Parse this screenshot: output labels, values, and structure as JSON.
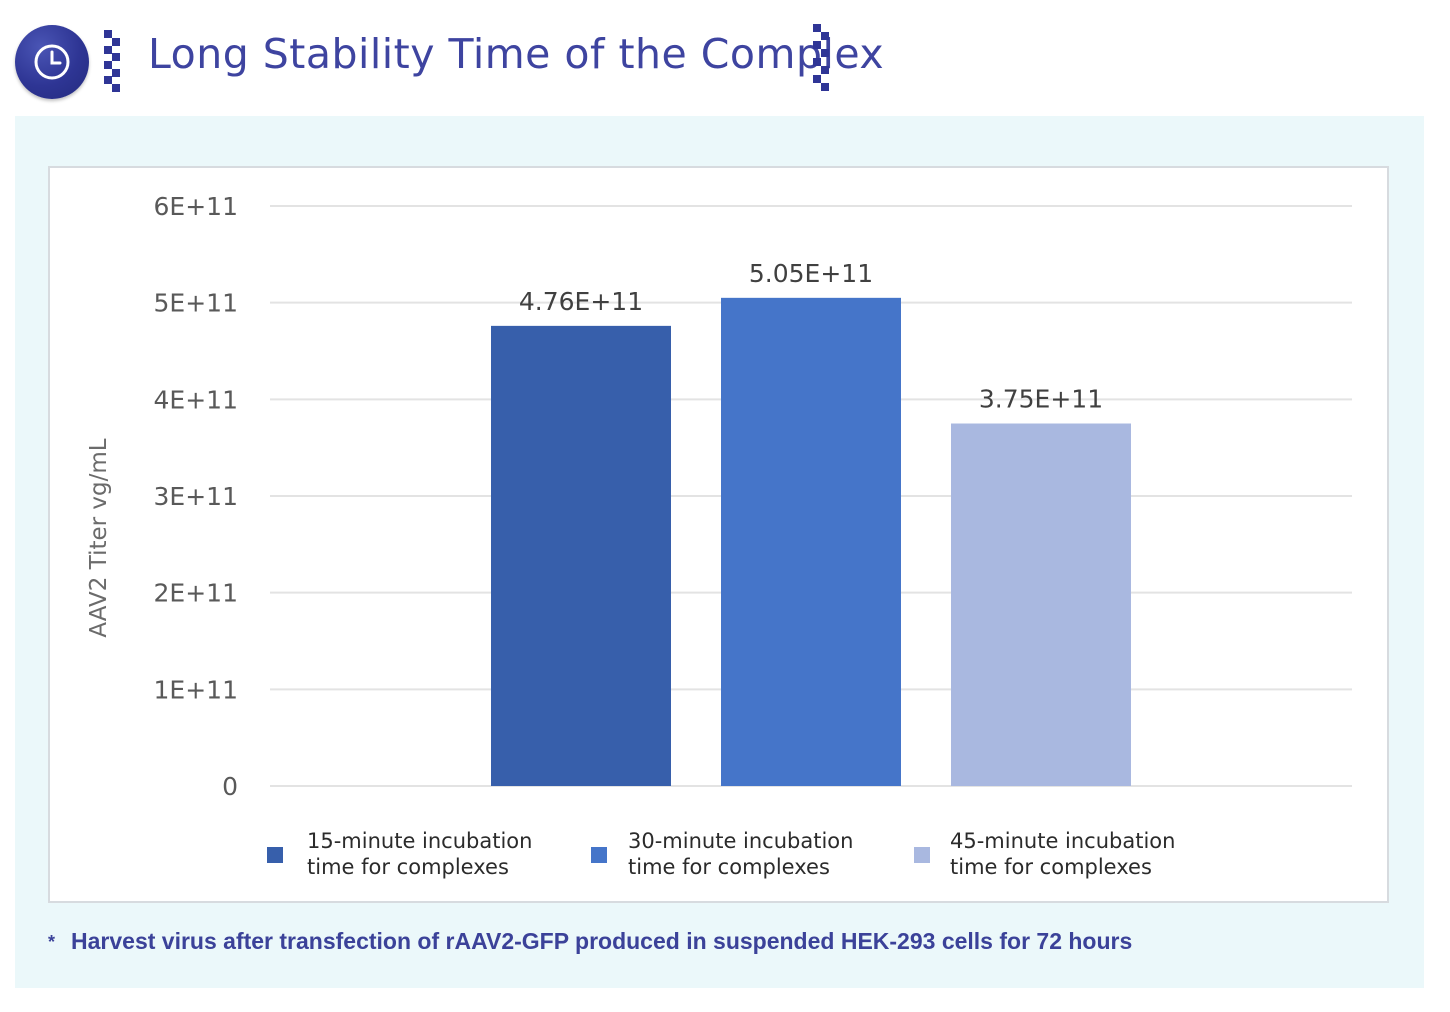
{
  "header": {
    "title": "Long Stability Time of the Complex",
    "icon": "clock-icon",
    "accent_color": "#3e44a0"
  },
  "chart_data": {
    "type": "bar",
    "title": "",
    "xlabel": "",
    "ylabel": "AAV2 Titer vg/mL",
    "ylim": [
      0,
      600000000000
    ],
    "yticks": [
      0,
      100000000000,
      200000000000,
      300000000000,
      400000000000,
      500000000000,
      600000000000
    ],
    "ytick_labels": [
      "0",
      "1E+11",
      "2E+11",
      "3E+11",
      "4E+11",
      "5E+11",
      "6E+11"
    ],
    "grid": true,
    "legend_position": "bottom",
    "series": [
      {
        "name": "15-minute incubation time for complexes",
        "legend_lines": [
          "15-minute incubation",
          "time for complexes"
        ],
        "values": [
          476000000000
        ],
        "data_label": "4.76E+11",
        "color": "#375fab"
      },
      {
        "name": "30-minute incubation time for complexes",
        "legend_lines": [
          "30-minute incubation",
          "time for complexes"
        ],
        "values": [
          505000000000
        ],
        "data_label": "5.05E+11",
        "color": "#4575c9"
      },
      {
        "name": "45-minute incubation time for complexes",
        "legend_lines": [
          "45-minute incubation",
          "time for complexes"
        ],
        "values": [
          375000000000
        ],
        "data_label": "3.75E+11",
        "color": "#a9b8e0"
      }
    ]
  },
  "footnote": {
    "marker": "*",
    "text": "Harvest virus after transfection of rAAV2-GFP produced in suspended HEK-293 cells for 72 hours"
  }
}
